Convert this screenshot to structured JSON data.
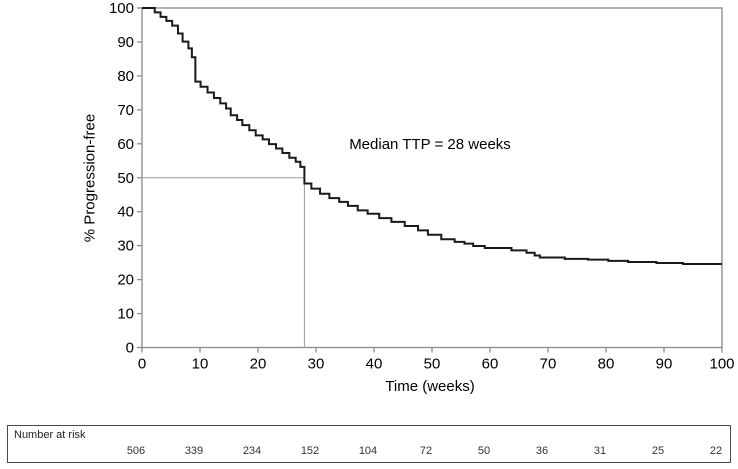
{
  "figure": {
    "annotation": "Median TTP = 28 weeks",
    "x_axis_title": "Time (weeks)",
    "y_axis_title": "% Progression-free"
  },
  "risk_table": {
    "label": "Number at risk",
    "values": [
      506,
      339,
      234,
      152,
      104,
      72,
      50,
      36,
      31,
      25,
      22
    ]
  },
  "colors": {
    "curve": "#1a1a1a",
    "axis": "#8a8a8a",
    "tick": "#8a8a8a",
    "ref_line": "#999999",
    "text": "#000000",
    "table_border": "#4a4a4a",
    "table_text": "#333333",
    "background": "#ffffff"
  },
  "chart_data": {
    "type": "line",
    "subtype": "kaplan-meier-step",
    "title": "",
    "xlabel": "Time (weeks)",
    "ylabel": "% Progression-free",
    "xlim": [
      0,
      100
    ],
    "ylim": [
      0,
      100
    ],
    "x_ticks": [
      0,
      10,
      20,
      30,
      40,
      50,
      60,
      70,
      80,
      90,
      100
    ],
    "y_ticks": [
      0,
      10,
      20,
      30,
      40,
      50,
      60,
      70,
      80,
      90,
      100
    ],
    "grid": false,
    "legend": "none",
    "annotation": "Median TTP = 28 weeks",
    "median_ttp_weeks": 28,
    "median_reference_lines": {
      "x": 28,
      "y": 50
    },
    "series": [
      {
        "name": "Progression-free",
        "steps": [
          [
            0,
            100
          ],
          [
            2.2,
            98.7
          ],
          [
            3.2,
            97.4
          ],
          [
            4.2,
            96.2
          ],
          [
            5.2,
            94.8
          ],
          [
            6.2,
            92.5
          ],
          [
            7.0,
            90.1
          ],
          [
            8.0,
            88.1
          ],
          [
            8.6,
            85.5
          ],
          [
            9.2,
            78.3
          ],
          [
            10.1,
            76.8
          ],
          [
            11.3,
            75.1
          ],
          [
            12.4,
            73.5
          ],
          [
            13.5,
            71.9
          ],
          [
            14.5,
            70.4
          ],
          [
            15.3,
            68.4
          ],
          [
            16.4,
            67.0
          ],
          [
            17.3,
            65.5
          ],
          [
            18.5,
            64.0
          ],
          [
            19.6,
            62.5
          ],
          [
            20.8,
            61.3
          ],
          [
            21.9,
            59.9
          ],
          [
            23.1,
            58.6
          ],
          [
            24.2,
            57.3
          ],
          [
            25.4,
            55.9
          ],
          [
            26.5,
            54.7
          ],
          [
            27.3,
            53.2
          ],
          [
            28,
            48.3
          ],
          [
            29.2,
            46.8
          ],
          [
            30.7,
            45.3
          ],
          [
            32.3,
            44.0
          ],
          [
            34.0,
            42.9
          ],
          [
            35.5,
            41.7
          ],
          [
            37.2,
            40.4
          ],
          [
            38.9,
            39.4
          ],
          [
            40.9,
            38.1
          ],
          [
            43.0,
            37.0
          ],
          [
            45.3,
            35.8
          ],
          [
            47.6,
            34.5
          ],
          [
            49.3,
            33.2
          ],
          [
            51.6,
            31.9
          ],
          [
            53.9,
            31.1
          ],
          [
            55.6,
            30.6
          ],
          [
            57.1,
            29.9
          ],
          [
            59.1,
            29.3
          ],
          [
            63.7,
            28.6
          ],
          [
            66.3,
            27.9
          ],
          [
            67.7,
            27.1
          ],
          [
            68.6,
            26.5
          ],
          [
            72.9,
            26.1
          ],
          [
            76.9,
            25.9
          ],
          [
            80.4,
            25.5
          ],
          [
            83.8,
            25.2
          ],
          [
            88.7,
            24.9
          ],
          [
            93.3,
            24.6
          ],
          [
            100,
            24.6
          ]
        ]
      }
    ],
    "number_at_risk": {
      "label": "Number at risk",
      "x": [
        0,
        10,
        20,
        30,
        40,
        50,
        60,
        70,
        80,
        90,
        100
      ],
      "values": [
        506,
        339,
        234,
        152,
        104,
        72,
        50,
        36,
        31,
        25,
        22
      ]
    }
  }
}
